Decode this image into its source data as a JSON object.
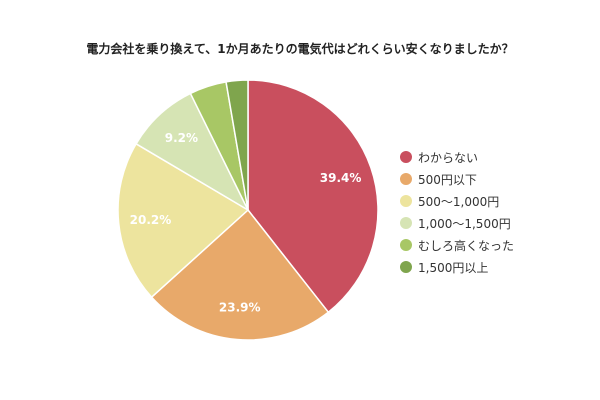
{
  "chart_data": {
    "type": "pie",
    "title": "電力会社を乗り換えて、1か月あたりの電気代はどれくらい安くなりましたか？",
    "categories": [
      "わからない",
      "500円以下",
      "500〜1,000円",
      "1,000〜1,500円",
      "むしろ高くなった",
      "1,500円以上"
    ],
    "values": [
      39.4,
      23.9,
      20.2,
      9.2,
      4.6,
      2.7
    ],
    "labels": [
      "39.4%",
      "23.9%",
      "20.2%",
      "9.2%",
      "",
      ""
    ],
    "colors": [
      "#c94f5e",
      "#e8a96a",
      "#ede49e",
      "#d6e4b4",
      "#a8c765",
      "#7fa54d"
    ],
    "legend_position": "right",
    "start_angle_deg": 0,
    "direction": "clockwise"
  }
}
